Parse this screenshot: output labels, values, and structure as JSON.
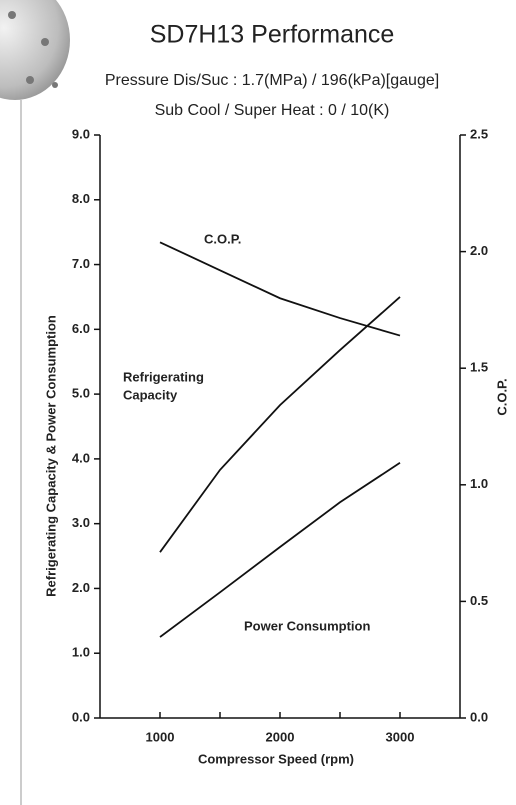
{
  "chart_data": {
    "type": "line",
    "title": "SD7H13 Performance",
    "subtitle": [
      "Pressure Dis/Suc : 1.7(MPa) / 196(kPa)[gauge]",
      "Sub Cool / Super Heat : 0 / 10(K)"
    ],
    "x_label": "Compressor Speed (rpm)",
    "y_label": "Refrigerating Capacity & Power Consumption",
    "y2_label": "C.O.P.",
    "x": [
      1000,
      1500,
      2000,
      2500,
      3000
    ],
    "xlim": [
      500,
      3500
    ],
    "xticks": [
      1000,
      2000,
      3000
    ],
    "xminorticks": [
      1500,
      2500
    ],
    "ylim": [
      0,
      9
    ],
    "yticks": [
      {
        "value": 0,
        "label": "0.0"
      },
      {
        "value": 1,
        "label": "1.0"
      },
      {
        "value": 2,
        "label": "2.0"
      },
      {
        "value": 3,
        "label": "3.0"
      },
      {
        "value": 4,
        "label": "4.0"
      },
      {
        "value": 5,
        "label": "5.0"
      },
      {
        "value": 6,
        "label": "6.0"
      },
      {
        "value": 7,
        "label": "7.0"
      },
      {
        "value": 8,
        "label": "8.0"
      },
      {
        "value": 9,
        "label": "9.0"
      }
    ],
    "y2lim": [
      0,
      2.5
    ],
    "y2ticks": [
      {
        "value": 0,
        "label": "0.0"
      },
      {
        "value": 0.5,
        "label": "0.5"
      },
      {
        "value": 1,
        "label": "1.0"
      },
      {
        "value": 1.5,
        "label": "1.5"
      },
      {
        "value": 2,
        "label": "2.0"
      },
      {
        "value": 2.5,
        "label": "2.5"
      }
    ],
    "series": [
      {
        "name": "C.O.P.",
        "color": "#111111",
        "axis": "y2",
        "values": [
          2.04,
          1.92,
          1.8,
          1.715,
          1.64
        ]
      },
      {
        "name": "Refrigerating Capacity",
        "color": "#111111",
        "values": [
          2.56,
          3.83,
          4.83,
          5.68,
          6.5
        ]
      },
      {
        "name": "Power Consumption",
        "color": "#111111",
        "values": [
          1.25,
          1.94,
          2.64,
          3.33,
          3.94
        ]
      }
    ],
    "annotations": [
      "C.O.P.",
      "Refrigerating",
      "Capacity",
      "Power Consumption"
    ]
  }
}
